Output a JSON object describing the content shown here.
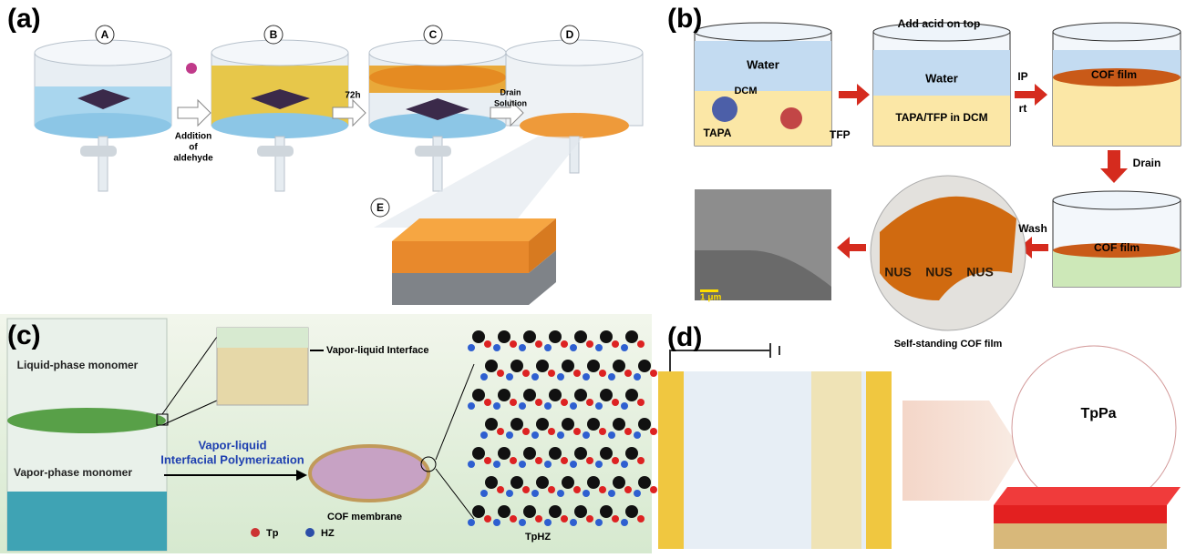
{
  "panel_a": {
    "label": "(a)",
    "steps": [
      "A",
      "B",
      "C",
      "D",
      "E"
    ],
    "addition": [
      "Addition",
      "of",
      "aldehyde"
    ],
    "time": "72h",
    "drain": [
      "Drain",
      "Solution"
    ]
  },
  "panel_b": {
    "label": "(b)",
    "layer_water": "Water",
    "layer_dcm": "DCM",
    "monomer_1": "TAPA",
    "monomer_2": "TFP",
    "acid": "Add acid on top",
    "layer_water_2": "Water",
    "mixture": "TAPA/TFP in DCM",
    "condition_1": "IP",
    "condition_2": "rt",
    "film_1": "COF film",
    "drain": "Drain",
    "film_2": "COF film",
    "wash": "Wash",
    "photo_marks": [
      "NUS",
      "NUS",
      "NUS"
    ],
    "scale_bar": "1 μm",
    "caption": "Self-standing COF film"
  },
  "panel_c": {
    "label": "(c)",
    "liquid_monomer": "Liquid-phase monomer",
    "interface": "Vapor-liquid Interface",
    "vapor_monomer": "Vapor-phase monomer",
    "process": [
      "Vapor-liquid",
      "Interfacial Polymerization"
    ],
    "membrane": "COF membrane",
    "product": "TpHZ",
    "legend_1": "Tp",
    "legend_2": "HZ"
  },
  "panel_d": {
    "label": "(d)",
    "product": "TpPa"
  }
}
